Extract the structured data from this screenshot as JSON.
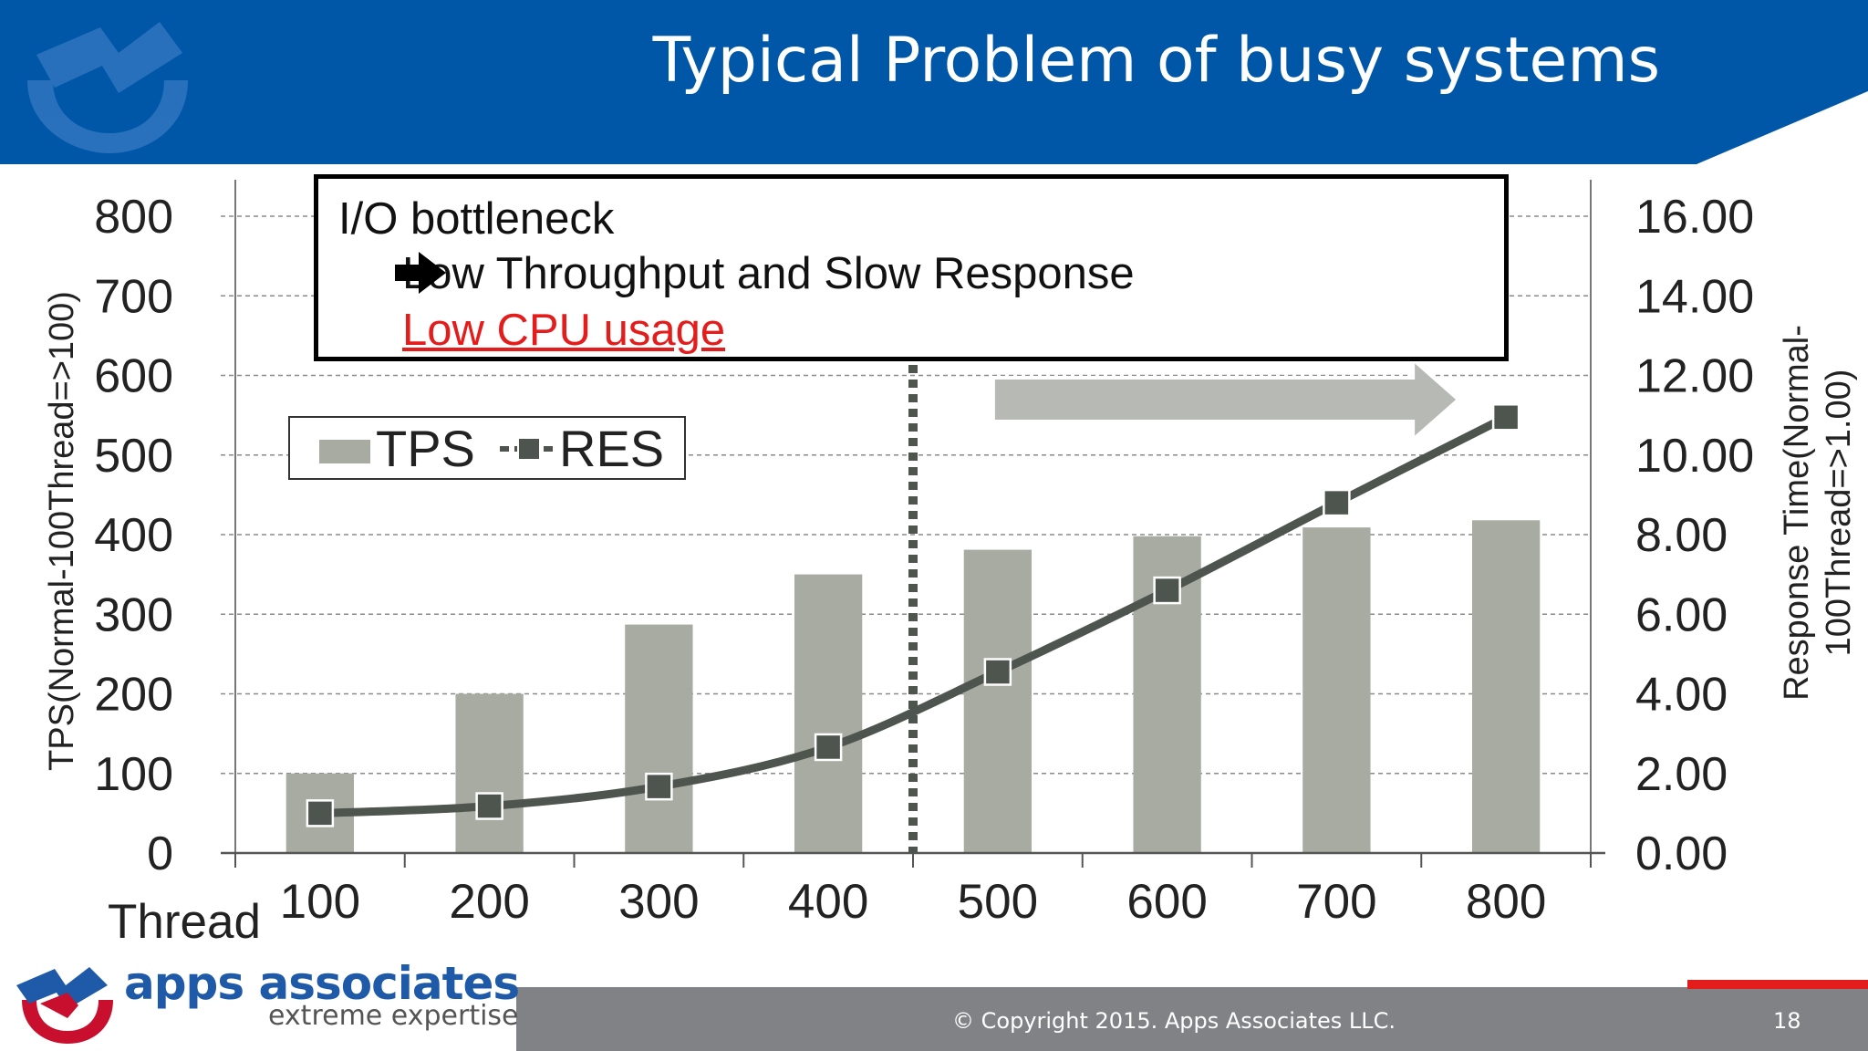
{
  "slide": {
    "title": "Typical Problem of busy systems",
    "page_number": "18",
    "copyright": "© Copyright 2015. Apps Associates LLC.",
    "brand": {
      "name": "apps associates",
      "tagline": "extreme expertise"
    },
    "colors": {
      "title_bar": "#0057a8",
      "footer_bar": "#808285",
      "accent_red": "#e31c1c",
      "bar_fill": "#a7aba2",
      "line": "#4e544e"
    }
  },
  "callout": {
    "line1": "I/O bottleneck",
    "line2": "Low Throughput and Slow Response",
    "line3": "Low CPU usage",
    "arrow_icon": "right-arrow-icon"
  },
  "legend": {
    "tps": "TPS",
    "res": "RES"
  },
  "chart_data": {
    "type": "bar",
    "title": "",
    "x_axis_title": "Thread",
    "categories": [
      "100",
      "200",
      "300",
      "400",
      "500",
      "600",
      "700",
      "800"
    ],
    "series": [
      {
        "name": "TPS",
        "type": "bar",
        "axis": "left",
        "values": [
          100,
          200,
          287,
          350,
          381,
          398,
          409,
          418
        ]
      },
      {
        "name": "RES",
        "type": "line",
        "axis": "right",
        "values": [
          1.0,
          1.18,
          1.67,
          2.66,
          4.55,
          6.6,
          8.8,
          10.95
        ]
      }
    ],
    "left_axis": {
      "label": "TPS(Normal-100Thread=>100)",
      "range": [
        0,
        800
      ],
      "ticks": [
        "0",
        "100",
        "200",
        "300",
        "400",
        "500",
        "600",
        "700",
        "800"
      ]
    },
    "right_axis": {
      "label_line1": "Response Time(Normal-",
      "label_line2": "100Thread=>1.00)",
      "range": [
        0,
        16
      ],
      "ticks": [
        "0.00",
        "2.00",
        "4.00",
        "6.00",
        "8.00",
        "10.00",
        "12.00",
        "14.00",
        "16.00"
      ]
    },
    "grid": true,
    "legend_position": "top-left",
    "annotations": [
      {
        "type": "dashed-vertical-line",
        "x_between": [
          "400",
          "500"
        ]
      },
      {
        "type": "arrow",
        "direction": "right",
        "from_category": "500",
        "to_category": "800"
      }
    ]
  }
}
